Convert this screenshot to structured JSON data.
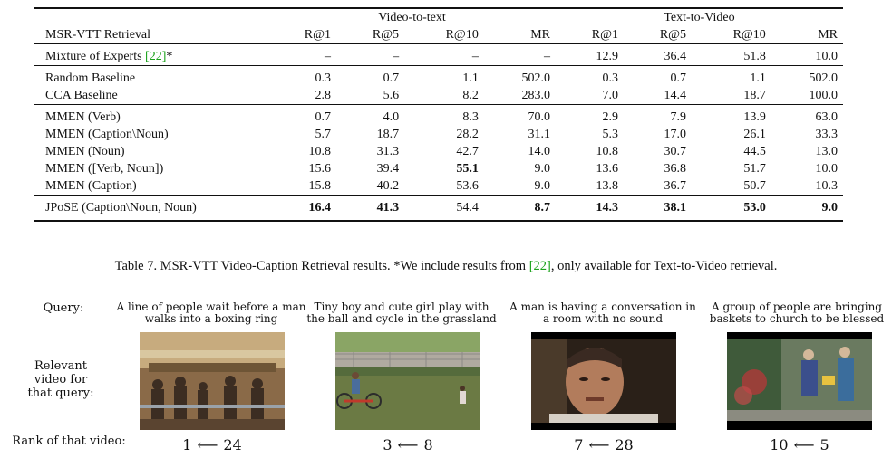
{
  "table": {
    "header_group": {
      "v2t": "Video-to-text",
      "t2v": "Text-to-Video"
    },
    "header_cols": [
      "MSR-VTT Retrieval",
      "R@1",
      "R@5",
      "R@10",
      "MR",
      "R@1",
      "R@5",
      "R@10",
      "MR"
    ],
    "row_moe": {
      "name": "Mixture of Experts ",
      "cite": "[22]",
      "suffix": "*",
      "cells": [
        "–",
        "–",
        "–",
        "–",
        "12.9",
        "36.4",
        "51.8",
        "10.0"
      ]
    },
    "rows_baseline": [
      {
        "name": "Random Baseline",
        "cells": [
          "0.3",
          "0.7",
          "1.1",
          "502.0",
          "0.3",
          "0.7",
          "1.1",
          "502.0"
        ]
      },
      {
        "name": "CCA Baseline",
        "cells": [
          "2.8",
          "5.6",
          "8.2",
          "283.0",
          "7.0",
          "14.4",
          "18.7",
          "100.0"
        ]
      }
    ],
    "rows_mmen": [
      {
        "name": "MMEN (Verb)",
        "cells": [
          "0.7",
          "4.0",
          "8.3",
          "70.0",
          "2.9",
          "7.9",
          "13.9",
          "63.0"
        ],
        "bold": []
      },
      {
        "name": "MMEN (Caption\\Noun)",
        "cells": [
          "5.7",
          "18.7",
          "28.2",
          "31.1",
          "5.3",
          "17.0",
          "26.1",
          "33.3"
        ],
        "bold": []
      },
      {
        "name": "MMEN (Noun)",
        "cells": [
          "10.8",
          "31.3",
          "42.7",
          "14.0",
          "10.8",
          "30.7",
          "44.5",
          "13.0"
        ],
        "bold": []
      },
      {
        "name": "MMEN ([Verb, Noun])",
        "cells": [
          "15.6",
          "39.4",
          "55.1",
          "9.0",
          "13.6",
          "36.8",
          "51.7",
          "10.0"
        ],
        "bold": [
          2
        ]
      },
      {
        "name": "MMEN (Caption)",
        "cells": [
          "15.8",
          "40.2",
          "53.6",
          "9.0",
          "13.8",
          "36.7",
          "50.7",
          "10.3"
        ],
        "bold": []
      }
    ],
    "row_jpose": {
      "name": "JPoSE (Caption\\Noun, Noun)",
      "cells": [
        "16.4",
        "41.3",
        "54.4",
        "8.7",
        "14.3",
        "38.1",
        "53.0",
        "9.0"
      ],
      "bold": [
        0,
        1,
        3,
        4,
        5,
        6,
        7
      ]
    }
  },
  "caption": {
    "pre": "Table 7. MSR-VTT Video-Caption Retrieval results. *We include results from ",
    "cite": "[22]",
    "post": ", only available for Text-to-Video retrieval."
  },
  "figure": {
    "labels": {
      "query": "Query:",
      "relevant": "Relevant\nvideo for\nthat query:",
      "rank": "Rank of that video:"
    },
    "queries": [
      {
        "text": "A line of people wait before a man walks into a boxing ring",
        "rank_new": "1",
        "rank_old": "24"
      },
      {
        "text": "Tiny boy and cute girl play with the ball and cycle in the grassland",
        "rank_new": "3",
        "rank_old": "8"
      },
      {
        "text": "A man is having a conversation in a room with no sound",
        "rank_new": "7",
        "rank_old": "28"
      },
      {
        "text": "A group of people are bringing baskets to church to be blessed",
        "rank_new": "10",
        "rank_old": "5"
      }
    ],
    "arrow": "⟵"
  }
}
